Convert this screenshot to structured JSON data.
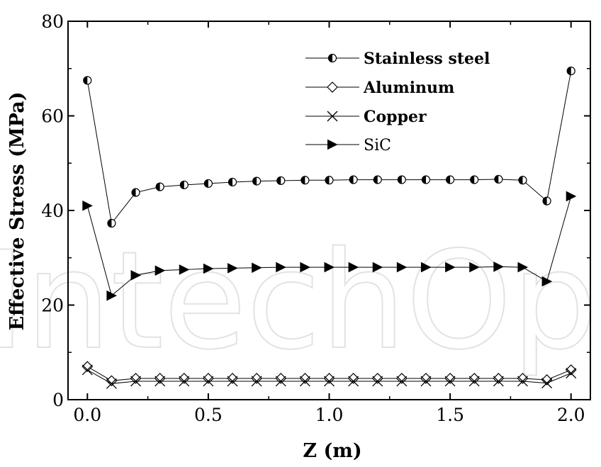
{
  "watermark": "IntechOpen",
  "chart_data": {
    "type": "line",
    "xlabel": "Z (m)",
    "ylabel": "Effective Stress (MPa)",
    "xlim": [
      -0.08,
      2.08
    ],
    "ylim": [
      0,
      80
    ],
    "xticks": [
      "0.0",
      "0.5",
      "1.0",
      "1.5",
      "2.0"
    ],
    "xtick_values": [
      0,
      0.5,
      1.0,
      1.5,
      2.0
    ],
    "yticks": [
      "0",
      "20",
      "40",
      "60",
      "80"
    ],
    "ytick_values": [
      0,
      20,
      40,
      60,
      80
    ],
    "grid": false,
    "legend_position": "top-right",
    "x": [
      0.0,
      0.1,
      0.2,
      0.3,
      0.4,
      0.5,
      0.6,
      0.7,
      0.8,
      0.9,
      1.0,
      1.1,
      1.2,
      1.3,
      1.4,
      1.5,
      1.6,
      1.7,
      1.8,
      1.9,
      2.0
    ],
    "series": [
      {
        "name": "Stainless steel",
        "bold": true,
        "marker": "half-circle",
        "values": [
          67.5,
          37.3,
          43.8,
          45.0,
          45.4,
          45.7,
          46.0,
          46.2,
          46.3,
          46.4,
          46.4,
          46.5,
          46.5,
          46.5,
          46.5,
          46.5,
          46.5,
          46.6,
          46.4,
          42.0,
          69.5
        ]
      },
      {
        "name": "Aluminum",
        "bold": true,
        "marker": "diamond",
        "values": [
          7.0,
          4.0,
          4.5,
          4.5,
          4.5,
          4.5,
          4.5,
          4.5,
          4.5,
          4.5,
          4.5,
          4.5,
          4.5,
          4.5,
          4.5,
          4.5,
          4.5,
          4.5,
          4.5,
          4.2,
          6.3
        ]
      },
      {
        "name": "Copper",
        "bold": true,
        "marker": "x",
        "values": [
          6.3,
          3.4,
          3.9,
          3.9,
          3.9,
          3.9,
          3.9,
          3.9,
          3.9,
          3.9,
          3.9,
          3.9,
          3.9,
          3.9,
          3.9,
          3.9,
          3.9,
          3.9,
          3.9,
          3.5,
          5.6
        ]
      },
      {
        "name": "SiC",
        "bold": false,
        "marker": "triangle-right",
        "values": [
          41.0,
          22.0,
          26.3,
          27.3,
          27.5,
          27.7,
          27.8,
          27.9,
          28.0,
          28.0,
          28.0,
          28.0,
          28.0,
          28.0,
          28.0,
          28.0,
          28.0,
          28.1,
          28.0,
          25.0,
          43.0
        ]
      }
    ]
  }
}
